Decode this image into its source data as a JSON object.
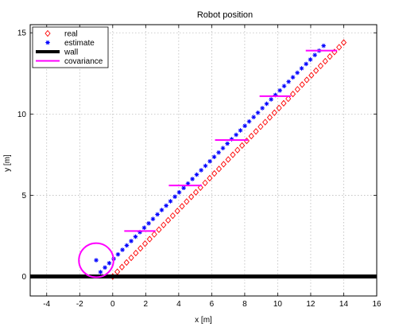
{
  "chart_data": {
    "type": "line",
    "title": "Robot position",
    "xlabel": "x [m]",
    "ylabel": "y [m]",
    "xlim": [
      -5,
      16
    ],
    "ylim": [
      -1.2,
      15.5
    ],
    "xticks": [
      -4,
      -2,
      0,
      2,
      4,
      6,
      8,
      10,
      12,
      14,
      16
    ],
    "yticks": [
      0,
      5,
      10,
      15
    ],
    "grid": true,
    "legend_position": "top-left",
    "series": [
      {
        "name": "real",
        "marker": "diamond",
        "color": "#ff0000",
        "x": [
          0,
          0.28,
          0.56,
          0.84,
          1.12,
          1.4,
          1.68,
          1.96,
          2.24,
          2.52,
          2.8,
          3.08,
          3.36,
          3.64,
          3.92,
          4.2,
          4.48,
          4.76,
          5.04,
          5.32,
          5.6,
          5.88,
          6.16,
          6.44,
          6.72,
          7.0,
          7.28,
          7.56,
          7.84,
          8.12,
          8.4,
          8.68,
          8.96,
          9.24,
          9.52,
          9.8,
          10.08,
          10.36,
          10.64,
          10.92,
          11.2,
          11.48,
          11.76,
          12.04,
          12.32,
          12.6,
          12.88,
          13.16,
          13.44,
          13.72,
          14.0
        ],
        "y": [
          0,
          0.29,
          0.58,
          0.86,
          1.15,
          1.44,
          1.73,
          2.02,
          2.3,
          2.59,
          2.88,
          3.17,
          3.46,
          3.74,
          4.03,
          4.32,
          4.61,
          4.9,
          5.18,
          5.47,
          5.76,
          6.05,
          6.34,
          6.62,
          6.91,
          7.2,
          7.49,
          7.78,
          8.06,
          8.35,
          8.64,
          8.93,
          9.22,
          9.5,
          9.79,
          10.08,
          10.37,
          10.66,
          10.94,
          11.23,
          11.52,
          11.81,
          12.1,
          12.38,
          12.67,
          12.96,
          13.25,
          13.54,
          13.82,
          14.11,
          14.4
        ]
      },
      {
        "name": "estimate",
        "marker": "asterisk",
        "color": "#0000ff",
        "x": [
          -1.0,
          -0.74,
          -0.47,
          -0.21,
          0.06,
          0.32,
          0.59,
          0.85,
          1.12,
          1.38,
          1.65,
          1.91,
          2.18,
          2.44,
          2.71,
          2.97,
          3.24,
          3.5,
          3.77,
          4.03,
          4.3,
          4.56,
          4.83,
          5.09,
          5.36,
          5.62,
          5.89,
          6.15,
          6.42,
          6.68,
          6.95,
          7.21,
          7.48,
          7.74,
          8.01,
          8.27,
          8.54,
          8.8,
          9.07,
          9.33,
          9.6,
          9.86,
          10.13,
          10.39,
          10.66,
          10.92,
          11.19,
          11.45,
          11.72,
          11.98,
          12.25,
          12.51,
          12.78
        ],
        "y": [
          1.0,
          0.27,
          0.55,
          0.82,
          1.09,
          1.36,
          1.64,
          1.91,
          2.18,
          2.45,
          2.73,
          3.0,
          3.27,
          3.54,
          3.82,
          4.09,
          4.36,
          4.63,
          4.91,
          5.18,
          5.45,
          5.72,
          6.0,
          6.27,
          6.54,
          6.81,
          7.09,
          7.36,
          7.63,
          7.9,
          8.18,
          8.45,
          8.72,
          8.99,
          9.27,
          9.54,
          9.81,
          10.08,
          10.36,
          10.63,
          10.9,
          11.17,
          11.45,
          11.72,
          11.99,
          12.26,
          12.54,
          12.81,
          13.08,
          13.35,
          13.63,
          13.9,
          14.2
        ]
      },
      {
        "name": "wall",
        "style": "thick-line",
        "color": "#000000",
        "x": [
          -5,
          16
        ],
        "y": [
          0,
          0
        ]
      },
      {
        "name": "covariance",
        "style": "line",
        "color": "#ff00ff",
        "circle": {
          "cx": -1.0,
          "cy": 1.0,
          "r": 1.05
        },
        "segments": [
          {
            "x": [
              0.7,
              2.6
            ],
            "y": [
              2.8,
              2.8
            ]
          },
          {
            "x": [
              3.4,
              5.4
            ],
            "y": [
              5.6,
              5.6
            ]
          },
          {
            "x": [
              6.2,
              8.2
            ],
            "y": [
              8.4,
              8.4
            ]
          },
          {
            "x": [
              8.9,
              10.8
            ],
            "y": [
              11.1,
              11.1
            ]
          },
          {
            "x": [
              11.7,
              13.6
            ],
            "y": [
              13.9,
              13.9
            ]
          }
        ]
      }
    ]
  }
}
